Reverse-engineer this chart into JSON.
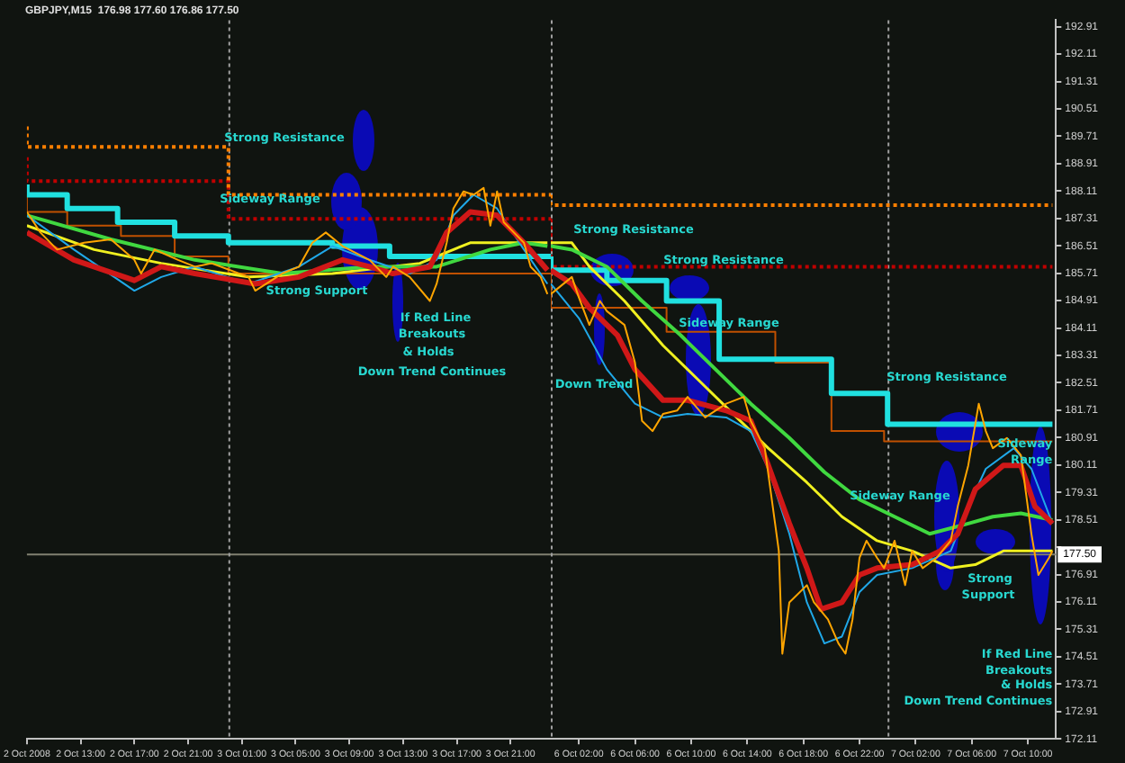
{
  "chart_data": [
    {
      "type": "line",
      "title": "GBPJPY,M15  176.98 177.60 176.86 177.50",
      "xlim": [
        "2008-10-02T09:00",
        "2008-10-04T00:00"
      ],
      "xticks": [
        {
          "value": "2008-10-02T09:00",
          "label": "2 Oct 2008"
        },
        {
          "value": "2008-10-02T13:00",
          "label": "2 Oct 13:00"
        },
        {
          "value": "2008-10-02T17:00",
          "label": "2 Oct 17:00"
        },
        {
          "value": "2008-10-02T21:00",
          "label": "2 Oct 21:00"
        },
        {
          "value": "2008-10-03T01:00",
          "label": "3 Oct 01:00"
        },
        {
          "value": "2008-10-03T05:00",
          "label": "3 Oct 05:00"
        },
        {
          "value": "2008-10-03T09:00",
          "label": "3 Oct 09:00"
        },
        {
          "value": "2008-10-03T13:00",
          "label": "3 Oct 13:00"
        },
        {
          "value": "2008-10-03T17:00",
          "label": "3 Oct 17:00"
        },
        {
          "value": "2008-10-03T21:00",
          "label": "3 Oct 21:00"
        }
      ],
      "ylim": [
        172.11,
        193.1
      ],
      "tick_labels": "x",
      "grid": false,
      "legend": false,
      "marker": "none",
      "series": [
        {
          "color": "#ffa500",
          "x": [
            "2008-10-02T09:00",
            "2008-10-02T10:00",
            "2008-10-02T11:15",
            "2008-10-02T13:15",
            "2008-10-02T15:15",
            "2008-10-02T17:00",
            "2008-10-02T17:30",
            "2008-10-02T18:30",
            "2008-10-02T20:15",
            "2008-10-02T21:30",
            "2008-10-02T22:45",
            "2008-10-03T01:30",
            "2008-10-03T02:00",
            "2008-10-03T04:00",
            "2008-10-03T05:15",
            "2008-10-03T06:15",
            "2008-10-03T07:15",
            "2008-10-03T08:30",
            "2008-10-03T10:30",
            "2008-10-03T11:45",
            "2008-10-03T12:15",
            "2008-10-03T13:30",
            "2008-10-03T15:00",
            "2008-10-03T15:30",
            "2008-10-03T16:15",
            "2008-10-03T16:45",
            "2008-10-03T17:30",
            "2008-10-03T18:15",
            "2008-10-03T19:00",
            "2008-10-03T19:30",
            "2008-10-03T20:00",
            "2008-10-03T20:30",
            "2008-10-03T22:00",
            "2008-10-03T22:30",
            "2008-10-03T23:15",
            "2008-10-03T23:45"
          ],
          "values": [
            187.5,
            186.9,
            186.4,
            186.6,
            186.7,
            186.1,
            185.7,
            186.4,
            186.1,
            185.9,
            186.0,
            185.6,
            185.2,
            185.7,
            185.9,
            186.6,
            186.9,
            186.5,
            186.1,
            185.6,
            185.9,
            185.6,
            184.9,
            185.4,
            186.6,
            187.6,
            188.1,
            188.0,
            188.2,
            187.1,
            188.1,
            187.2,
            186.6,
            185.9,
            185.6,
            185.1
          ]
        },
        {
          "color": "#d01818",
          "x": [
            "2008-10-02T09:00",
            "2008-10-02T12:30",
            "2008-10-02T17:00",
            "2008-10-02T19:00",
            "2008-10-02T21:30",
            "2008-10-03T02:00",
            "2008-10-03T05:15",
            "2008-10-03T08:30",
            "2008-10-03T10:30",
            "2008-10-03T12:15",
            "2008-10-03T15:00",
            "2008-10-03T16:15",
            "2008-10-03T18:00",
            "2008-10-03T20:00",
            "2008-10-03T22:00",
            "2008-10-03T23:45"
          ],
          "values": [
            186.9,
            186.1,
            185.5,
            185.9,
            185.7,
            185.4,
            185.6,
            186.1,
            185.9,
            185.7,
            185.9,
            186.9,
            187.5,
            187.4,
            186.6,
            185.8
          ]
        },
        {
          "color": "#20a8e8",
          "x": [
            "2008-10-02T09:00",
            "2008-10-02T12:30",
            "2008-10-02T17:00",
            "2008-10-02T19:00",
            "2008-10-02T21:30",
            "2008-10-03T01:30",
            "2008-10-03T05:15",
            "2008-10-03T07:45",
            "2008-10-03T10:30",
            "2008-10-03T13:30",
            "2008-10-03T15:30",
            "2008-10-03T16:45",
            "2008-10-03T18:15",
            "2008-10-03T20:00",
            "2008-10-03T22:00",
            "2008-10-03T23:45"
          ],
          "values": [
            187.4,
            186.4,
            185.2,
            185.6,
            185.9,
            185.4,
            185.9,
            186.5,
            186.1,
            185.7,
            186.1,
            187.4,
            188.0,
            187.6,
            186.4,
            185.4
          ]
        },
        {
          "color": "#40d840",
          "x": [
            "2008-10-02T09:00",
            "2008-10-02T15:15",
            "2008-10-02T21:30",
            "2008-10-03T04:00",
            "2008-10-03T10:30",
            "2008-10-03T15:30",
            "2008-10-03T19:30",
            "2008-10-03T22:00",
            "2008-10-03T23:45"
          ],
          "values": [
            187.4,
            186.7,
            186.1,
            185.7,
            185.9,
            185.9,
            186.4,
            186.6,
            186.5
          ]
        },
        {
          "color": "#f0f020",
          "x": [
            "2008-10-02T09:00",
            "2008-10-02T14:00",
            "2008-10-02T19:00",
            "2008-10-03T01:30",
            "2008-10-03T07:45",
            "2008-10-03T14:15",
            "2008-10-03T18:00",
            "2008-10-03T23:45"
          ],
          "values": [
            187.1,
            186.4,
            186.0,
            185.6,
            185.7,
            186.0,
            186.6,
            186.6
          ]
        },
        {
          "type": "step",
          "color": "#20e0e0",
          "x": [
            "2008-10-02T09:00",
            "2008-10-02T12:00",
            "2008-10-02T15:45",
            "2008-10-02T20:00",
            "2008-10-03T00:00",
            "2008-10-03T07:45",
            "2008-10-03T12:00",
            "2008-10-03T23:15",
            "2008-10-04T00:00"
          ],
          "values": [
            188.3,
            188.0,
            187.6,
            187.2,
            186.8,
            186.6,
            186.5,
            186.2,
            186.2
          ]
        },
        {
          "type": "step",
          "color": "#ff7f00",
          "line_style": "dotted",
          "x": [
            "2008-10-02T09:00",
            "2008-10-03T00:00",
            "2008-10-03T22:45",
            "2008-10-04T00:00"
          ],
          "values": [
            190.0,
            189.4,
            188.0,
            188.0
          ]
        },
        {
          "type": "step",
          "color": "#c00000",
          "line_style": "dotted",
          "x": [
            "2008-10-02T09:00",
            "2008-10-03T00:00",
            "2008-10-03T23:15",
            "2008-10-04T00:00"
          ],
          "values": [
            189.1,
            188.4,
            187.3,
            187.3
          ]
        },
        {
          "type": "step",
          "color": "#c05000",
          "x": [
            "2008-10-02T09:00",
            "2008-10-02T12:00",
            "2008-10-02T16:00",
            "2008-10-02T20:00",
            "2008-10-03T00:00",
            "2008-10-03T04:00",
            "2008-10-04T00:00"
          ],
          "values": [
            188.0,
            187.5,
            187.1,
            186.8,
            186.2,
            185.7,
            185.7
          ]
        }
      ],
      "ref_lines": [
        {
          "axis": "y",
          "value": 177.5,
          "color": "#808070"
        },
        {
          "axis": "x",
          "value": "2008-10-03T00:00",
          "color": "#a0a0a0",
          "line_style": "dotted"
        }
      ],
      "annotations": [
        "Strong Resistance",
        "Sideway Range",
        "Strong Support",
        "If Red Line",
        "Breakouts",
        "& Holds",
        "Down Trend Continues"
      ]
    },
    {
      "type": "line",
      "xlim": [
        "2008-10-06T00:00",
        "2008-10-07T12:00"
      ],
      "xticks": [
        {
          "value": "2008-10-06T02:00",
          "label": "6 Oct 02:00"
        },
        {
          "value": "2008-10-06T06:00",
          "label": "6 Oct 06:00"
        },
        {
          "value": "2008-10-06T10:00",
          "label": "6 Oct 10:00"
        },
        {
          "value": "2008-10-06T14:00",
          "label": "6 Oct 14:00"
        },
        {
          "value": "2008-10-06T18:00",
          "label": "6 Oct 18:00"
        },
        {
          "value": "2008-10-06T22:00",
          "label": "6 Oct 22:00"
        },
        {
          "value": "2008-10-07T02:00",
          "label": "7 Oct 02:00"
        },
        {
          "value": "2008-10-07T06:00",
          "label": "7 Oct 06:00"
        },
        {
          "value": "2008-10-07T10:00",
          "label": "7 Oct 10:00"
        }
      ],
      "ylim": [
        172.11,
        193.1
      ],
      "yticks": [
        172.11,
        172.91,
        173.71,
        174.51,
        175.31,
        176.11,
        176.91,
        {
          "value": 177.71,
          "label": null
        },
        178.51,
        179.31,
        180.11,
        180.91,
        181.71,
        182.51,
        183.31,
        184.11,
        184.91,
        185.71,
        186.51,
        187.31,
        188.11,
        188.91,
        189.71,
        190.51,
        191.31,
        192.11,
        192.91
      ],
      "grid": false,
      "legend": false,
      "marker": "none",
      "series": [
        {
          "color": "#ffa500",
          "x": [
            "2008-10-06T00:00",
            "2008-10-06T01:30",
            "2008-10-06T02:00",
            "2008-10-06T02:45",
            "2008-10-06T03:30",
            "2008-10-06T04:00",
            "2008-10-06T05:15",
            "2008-10-06T06:00",
            "2008-10-06T06:30",
            "2008-10-06T07:15",
            "2008-10-06T08:00",
            "2008-10-06T09:00",
            "2008-10-06T09:45",
            "2008-10-06T11:00",
            "2008-10-06T12:30",
            "2008-10-06T13:45",
            "2008-10-06T14:15",
            "2008-10-06T15:15",
            "2008-10-06T16:15",
            "2008-10-06T16:30",
            "2008-10-06T17:00",
            "2008-10-06T18:15",
            "2008-10-06T18:45",
            "2008-10-06T19:45",
            "2008-10-06T20:30",
            "2008-10-06T21:00",
            "2008-10-06T21:30",
            "2008-10-06T22:00",
            "2008-10-06T22:30",
            "2008-10-06T23:15",
            "2008-10-06T23:45",
            "2008-10-07T00:30",
            "2008-10-07T01:15",
            "2008-10-07T01:45",
            "2008-10-07T02:30",
            "2008-10-07T03:30",
            "2008-10-07T04:30",
            "2008-10-07T05:00",
            "2008-10-07T05:45",
            "2008-10-07T06:30",
            "2008-10-07T07:00",
            "2008-10-07T07:30",
            "2008-10-07T08:30",
            "2008-10-07T09:30",
            "2008-10-07T10:15",
            "2008-10-07T10:45",
            "2008-10-07T11:30",
            "2008-10-07T11:45"
          ],
          "values": [
            185.1,
            185.6,
            185.0,
            184.2,
            184.9,
            184.6,
            184.2,
            183.1,
            181.4,
            181.1,
            181.6,
            181.7,
            182.1,
            181.5,
            181.9,
            182.1,
            181.4,
            180.6,
            177.6,
            174.6,
            176.1,
            176.6,
            176.1,
            175.6,
            174.9,
            174.6,
            175.6,
            177.4,
            177.9,
            177.4,
            177.1,
            177.9,
            176.6,
            177.6,
            177.1,
            177.4,
            177.9,
            178.9,
            180.1,
            181.9,
            181.1,
            180.6,
            180.9,
            180.4,
            178.1,
            176.9,
            177.4,
            177.6
          ]
        },
        {
          "color": "#d01818",
          "x": [
            "2008-10-06T00:00",
            "2008-10-06T01:30",
            "2008-10-06T02:45",
            "2008-10-06T04:45",
            "2008-10-06T06:00",
            "2008-10-06T08:00",
            "2008-10-06T09:45",
            "2008-10-06T12:30",
            "2008-10-06T14:15",
            "2008-10-06T15:30",
            "2008-10-06T17:00",
            "2008-10-06T18:15",
            "2008-10-06T19:15",
            "2008-10-06T20:45",
            "2008-10-06T22:00",
            "2008-10-06T23:15",
            "2008-10-07T01:45",
            "2008-10-07T03:45",
            "2008-10-07T05:00",
            "2008-10-07T06:15",
            "2008-10-07T08:15",
            "2008-10-07T09:30",
            "2008-10-07T10:30",
            "2008-10-07T11:45"
          ],
          "values": [
            185.8,
            185.4,
            184.7,
            183.9,
            182.9,
            182.0,
            182.0,
            181.7,
            181.4,
            180.1,
            178.4,
            177.1,
            175.9,
            176.1,
            176.9,
            177.1,
            177.2,
            177.6,
            178.1,
            179.4,
            180.1,
            180.1,
            178.9,
            178.4
          ]
        },
        {
          "color": "#20a8e8",
          "x": [
            "2008-10-06T00:00",
            "2008-10-06T02:00",
            "2008-10-06T04:00",
            "2008-10-06T06:00",
            "2008-10-06T08:00",
            "2008-10-06T09:45",
            "2008-10-06T12:30",
            "2008-10-06T14:15",
            "2008-10-06T15:30",
            "2008-10-06T17:00",
            "2008-10-06T18:15",
            "2008-10-06T19:30",
            "2008-10-06T20:45",
            "2008-10-06T22:00",
            "2008-10-06T23:15",
            "2008-10-07T01:45",
            "2008-10-07T04:30",
            "2008-10-07T05:45",
            "2008-10-07T07:00",
            "2008-10-07T09:00",
            "2008-10-07T10:15",
            "2008-10-07T11:45"
          ],
          "values": [
            185.4,
            184.4,
            182.9,
            181.9,
            181.5,
            181.6,
            181.5,
            181.1,
            180.0,
            178.1,
            176.1,
            174.9,
            175.1,
            176.4,
            176.9,
            177.1,
            177.6,
            178.9,
            180.0,
            180.6,
            180.0,
            178.4
          ]
        },
        {
          "color": "#40d840",
          "x": [
            "2008-10-06T00:00",
            "2008-10-06T01:30",
            "2008-10-06T04:00",
            "2008-10-06T06:30",
            "2008-10-06T09:15",
            "2008-10-06T11:45",
            "2008-10-06T14:15",
            "2008-10-06T17:00",
            "2008-10-06T19:30",
            "2008-10-06T22:00",
            "2008-10-07T00:30",
            "2008-10-07T03:00",
            "2008-10-07T05:45",
            "2008-10-07T07:30",
            "2008-10-07T09:30",
            "2008-10-07T11:45"
          ],
          "values": [
            186.5,
            186.4,
            185.9,
            184.9,
            183.9,
            182.9,
            181.9,
            180.9,
            179.9,
            179.1,
            178.6,
            178.1,
            178.4,
            178.6,
            178.7,
            178.5
          ]
        },
        {
          "color": "#f0f020",
          "x": [
            "2008-10-06T00:00",
            "2008-10-06T01:30",
            "2008-10-06T02:45",
            "2008-10-06T05:15",
            "2008-10-06T08:00",
            "2008-10-06T10:30",
            "2008-10-06T13:00",
            "2008-10-06T15:30",
            "2008-10-06T18:15",
            "2008-10-06T20:45",
            "2008-10-06T23:15",
            "2008-10-07T01:45",
            "2008-10-07T04:30",
            "2008-10-07T06:15",
            "2008-10-07T08:15",
            "2008-10-07T10:15",
            "2008-10-07T11:45"
          ],
          "values": [
            186.6,
            186.6,
            185.9,
            184.9,
            183.6,
            182.6,
            181.6,
            180.6,
            179.6,
            178.6,
            177.9,
            177.6,
            177.1,
            177.2,
            177.6,
            177.6,
            177.6
          ]
        },
        {
          "type": "step",
          "color": "#20e0e0",
          "x": [
            "2008-10-06T00:00",
            "2008-10-06T04:00",
            "2008-10-06T08:15",
            "2008-10-06T12:00",
            "2008-10-06T20:00",
            "2008-10-07T00:00",
            "2008-10-07T08:15",
            "2008-10-07T11:45"
          ],
          "values": [
            186.2,
            185.8,
            185.5,
            184.9,
            183.2,
            182.2,
            181.3,
            181.3
          ]
        },
        {
          "type": "step",
          "color": "#ff7f00",
          "line_style": "dotted",
          "x": [
            "2008-10-06T00:00",
            "2008-10-07T00:00",
            "2008-10-07T11:45"
          ],
          "values": [
            188.0,
            187.7,
            187.7
          ]
        },
        {
          "type": "step",
          "color": "#c00000",
          "line_style": "dotted",
          "x": [
            "2008-10-06T00:00",
            "2008-10-07T00:00",
            "2008-10-07T11:45"
          ],
          "values": [
            187.3,
            185.9,
            185.9
          ]
        },
        {
          "type": "step",
          "color": "#c05000",
          "x": [
            "2008-10-06T00:00",
            "2008-10-06T08:15",
            "2008-10-06T16:00",
            "2008-10-06T20:00",
            "2008-10-06T23:45",
            "2008-10-07T04:30",
            "2008-10-07T11:45"
          ],
          "values": [
            185.7,
            184.7,
            184.0,
            183.1,
            181.1,
            180.8,
            180.8
          ]
        }
      ],
      "ref_lines": [
        {
          "axis": "y",
          "value": 177.5,
          "label": "177.50",
          "color": "#808070"
        },
        {
          "axis": "x",
          "value": "2008-10-06T00:00",
          "color": "#a0a0a0",
          "line_style": "dotted"
        },
        {
          "axis": "x",
          "value": "2008-10-07T00:00",
          "color": "#a0a0a0",
          "line_style": "dotted"
        }
      ],
      "annotations": [
        "Down Trend",
        "Strong Resistance",
        "Strong Resistance",
        "Sideway Range",
        "Strong Resistance",
        "Sideway Range",
        "Sideway",
        "Range",
        "Strong",
        "Support",
        "If Red Line",
        "Breakouts",
        "& Holds",
        "Down Trend Continues"
      ]
    }
  ]
}
